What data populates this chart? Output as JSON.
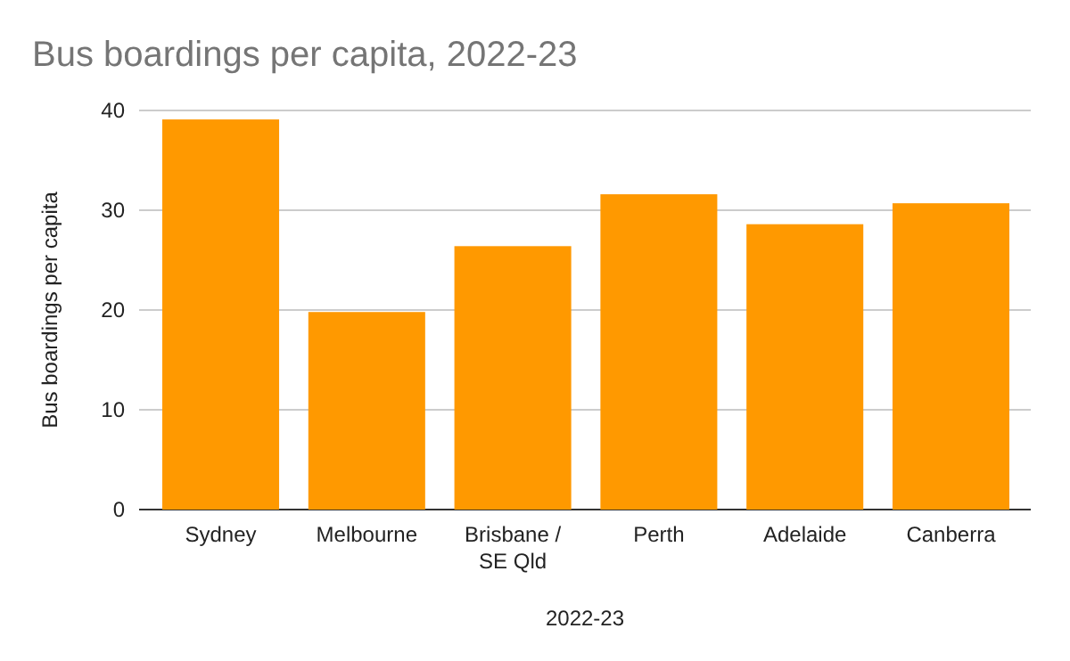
{
  "chart_data": {
    "type": "bar",
    "title": "Bus boardings per capita, 2022-23",
    "xlabel": "2022-23",
    "ylabel": "Bus boardings per capita",
    "categories": [
      "Sydney",
      "Melbourne",
      "Brisbane / SE Qld",
      "Perth",
      "Adelaide",
      "Canberra"
    ],
    "values": [
      39.1,
      19.8,
      26.4,
      31.6,
      28.6,
      30.7
    ],
    "color": "#ff9900",
    "ylim": [
      0,
      40
    ],
    "yticks": [
      0,
      10,
      20,
      30,
      40
    ],
    "grid": "y"
  }
}
